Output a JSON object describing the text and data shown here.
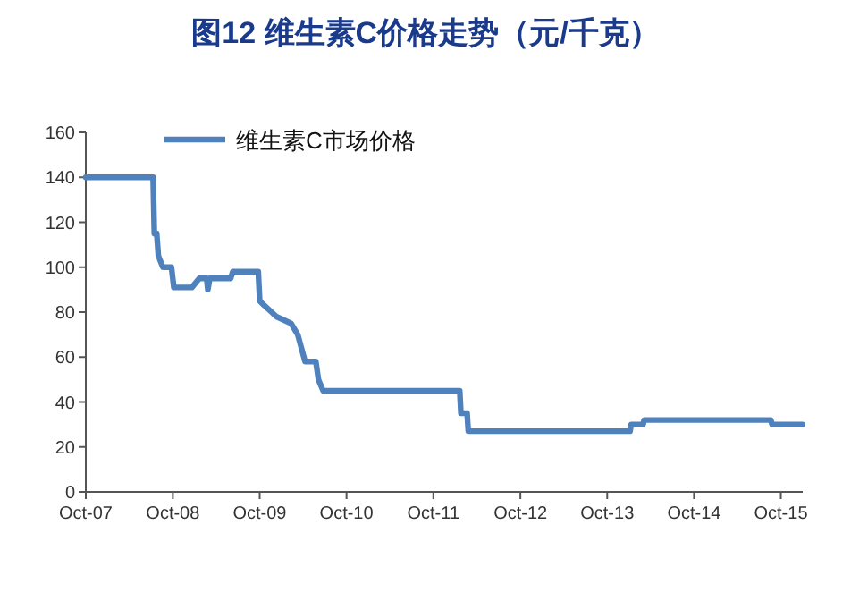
{
  "chart_data": {
    "type": "line",
    "title": "图12  维生素C价格走势（元/千克）",
    "series": [
      {
        "name": "维生素C市场价格",
        "color": "#4f81bd",
        "x": [
          "2007-10-01",
          "2008-07-10",
          "2008-07-15",
          "2008-07-25",
          "2008-08-01",
          "2008-08-20",
          "2008-09-25",
          "2008-10-05",
          "2008-12-20",
          "2009-01-20",
          "2009-02-20",
          "2009-02-25",
          "2009-03-05",
          "2009-06-01",
          "2009-06-10",
          "2009-09-25",
          "2009-10-01",
          "2009-10-20",
          "2009-11-20",
          "2009-12-10",
          "2010-02-10",
          "2010-03-10",
          "2010-04-10",
          "2010-05-25",
          "2010-06-05",
          "2010-06-25",
          "2012-01-20",
          "2012-01-25",
          "2012-02-20",
          "2012-02-25",
          "2014-01-05",
          "2014-01-10",
          "2014-03-01",
          "2014-03-05",
          "2015-08-20",
          "2015-08-25",
          "2015-12-31"
        ],
        "values": [
          140,
          140,
          115,
          115,
          105,
          100,
          100,
          91,
          91,
          95,
          95,
          90,
          95,
          95,
          98,
          98,
          85,
          83,
          80,
          78,
          75,
          70,
          58,
          58,
          50,
          45,
          45,
          35,
          35,
          27,
          27,
          30,
          30,
          32,
          32,
          30,
          30
        ]
      }
    ],
    "xlim": [
      "2007-10-01",
      "2016-01-01"
    ],
    "xticks": [
      {
        "value": "2007-10-01",
        "label": "Oct-07"
      },
      {
        "value": "2008-10-01",
        "label": "Oct-08"
      },
      {
        "value": "2009-10-01",
        "label": "Oct-09"
      },
      {
        "value": "2010-10-01",
        "label": "Oct-10"
      },
      {
        "value": "2011-10-01",
        "label": "Oct-11"
      },
      {
        "value": "2012-10-01",
        "label": "Oct-12"
      },
      {
        "value": "2013-10-01",
        "label": "Oct-13"
      },
      {
        "value": "2014-10-01",
        "label": "Oct-14"
      },
      {
        "value": "2015-10-01",
        "label": "Oct-15"
      }
    ],
    "ylim": [
      0,
      160
    ],
    "yticks": [
      0,
      20,
      40,
      60,
      80,
      100,
      120,
      140,
      160
    ],
    "legend": "top left",
    "marker": "none",
    "line_style": "solid"
  }
}
